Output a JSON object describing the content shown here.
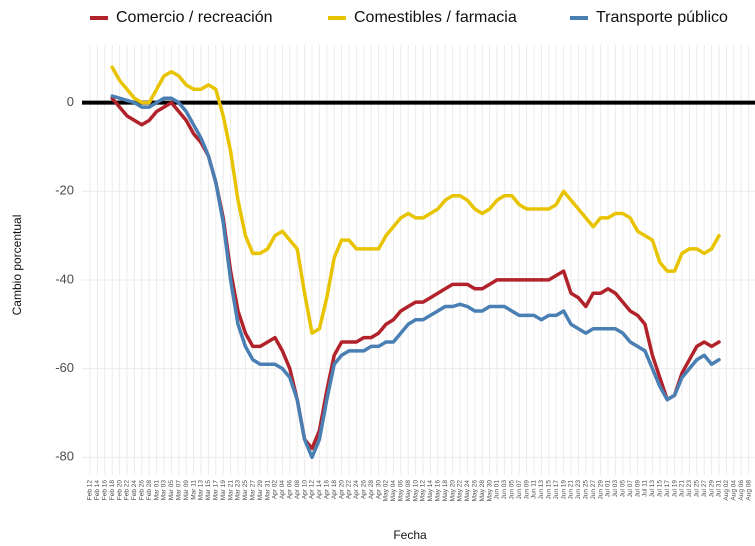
{
  "chart_data": {
    "type": "line",
    "x_label": "Fecha",
    "y_label": "Cambio porcentual",
    "x": [
      "Feb 12",
      "Feb 14",
      "Feb 16",
      "Feb 18",
      "Feb 20",
      "Feb 22",
      "Feb 24",
      "Feb 26",
      "Feb 28",
      "Mar 01",
      "Mar 03",
      "Mar 05",
      "Mar 07",
      "Mar 09",
      "Mar 11",
      "Mar 13",
      "Mar 15",
      "Mar 17",
      "Mar 19",
      "Mar 21",
      "Mar 23",
      "Mar 25",
      "Mar 27",
      "Mar 29",
      "Mar 31",
      "Apr 02",
      "Apr 04",
      "Apr 06",
      "Apr 08",
      "Apr 10",
      "Apr 12",
      "Apr 14",
      "Apr 16",
      "Apr 18",
      "Apr 20",
      "Apr 22",
      "Apr 24",
      "Apr 26",
      "Apr 28",
      "Apr 30",
      "May 02",
      "May 04",
      "May 06",
      "May 08",
      "May 10",
      "May 12",
      "May 14",
      "May 16",
      "May 18",
      "May 20",
      "May 22",
      "May 24",
      "May 26",
      "May 28",
      "May 30",
      "Jun 01",
      "Jun 03",
      "Jun 05",
      "Jun 07",
      "Jun 09",
      "Jun 11",
      "Jun 13",
      "Jun 15",
      "Jun 17",
      "Jun 19",
      "Jun 21",
      "Jun 23",
      "Jun 25",
      "Jun 27",
      "Jun 29",
      "Jul 01",
      "Jul 03",
      "Jul 05",
      "Jul 07",
      "Jul 09",
      "Jul 11",
      "Jul 13",
      "Jul 15",
      "Jul 17",
      "Jul 19",
      "Jul 21",
      "Jul 23",
      "Jul 25",
      "Jul 27",
      "Jul 29",
      "Jul 31",
      "Aug 02",
      "Aug 04",
      "Aug 06",
      "Aug 08"
    ],
    "series": [
      {
        "name": "Comercio / recreación",
        "color": "#b2222a",
        "values": [
          null,
          null,
          null,
          1,
          -1,
          -3,
          -4,
          -5,
          -4,
          -2,
          -1,
          0,
          -2,
          -4,
          -7,
          -9,
          -12,
          -18,
          -26,
          -38,
          -47,
          -52,
          -55,
          -55,
          -54,
          -53,
          -56,
          -60,
          -67,
          -76,
          -78,
          -74,
          -65,
          -57,
          -54,
          -54,
          -54,
          -53,
          -53,
          -52,
          -50,
          -49,
          -47,
          -46,
          -45,
          -45,
          -44,
          -43,
          -42,
          -41,
          -41,
          -41,
          -42,
          -42,
          -41,
          -40,
          -40,
          -40,
          -40,
          -40,
          -40,
          -40,
          -40,
          -39,
          -38,
          -43,
          -44,
          -46,
          -43,
          -43,
          -42,
          -43,
          -45,
          -47,
          -48,
          -50,
          -57,
          -62,
          -67,
          -66,
          -61,
          -58,
          -55,
          -54,
          -55,
          -54,
          null,
          null,
          null,
          null
        ]
      },
      {
        "name": "Comestibles / farmacia",
        "color": "#e8c400",
        "values": [
          null,
          null,
          null,
          8,
          5,
          3,
          1,
          0,
          0,
          3,
          6,
          7,
          6,
          4,
          3,
          3,
          4,
          3,
          -3,
          -11,
          -22,
          -30,
          -34,
          -34,
          -33,
          -30,
          -29,
          -31,
          -33,
          -43,
          -52,
          -51,
          -44,
          -35,
          -31,
          -31,
          -33,
          -33,
          -33,
          -33,
          -30,
          -28,
          -26,
          -25,
          -26,
          -26,
          -25,
          -24,
          -22,
          -21,
          -21,
          -22,
          -24,
          -25,
          -24,
          -22,
          -21,
          -21,
          -23,
          -24,
          -24,
          -24,
          -24,
          -23,
          -20,
          -22,
          -24,
          -26,
          -28,
          -26,
          -26,
          -25,
          -25,
          -26,
          -29,
          -30,
          -31,
          -36,
          -38,
          -38,
          -34,
          -33,
          -33,
          -34,
          -33,
          -30,
          null,
          null,
          null,
          null
        ]
      },
      {
        "name": "Transporte público",
        "color": "#4a7fb4",
        "values": [
          null,
          null,
          null,
          1.5,
          1,
          0.5,
          0,
          -1,
          -1,
          0,
          1,
          1,
          0,
          -2,
          -5,
          -8,
          -12,
          -18,
          -27,
          -40,
          -50,
          -55,
          -58,
          -59,
          -59,
          -59,
          -60,
          -62,
          -67,
          -76,
          -80,
          -76,
          -67,
          -59,
          -57,
          -56,
          -56,
          -56,
          -55,
          -55,
          -54,
          -54,
          -52,
          -50,
          -49,
          -49,
          -48,
          -47,
          -46,
          -46,
          -45.5,
          -46,
          -47,
          -47,
          -46,
          -46,
          -46,
          -47,
          -48,
          -48,
          -48,
          -49,
          -48,
          -48,
          -47,
          -50,
          -51,
          -52,
          -51,
          -51,
          -51,
          -51,
          -52,
          -54,
          -55,
          -56,
          -60,
          -64,
          -67,
          -66,
          -62,
          -60,
          -58,
          -57,
          -59,
          -58,
          null,
          null,
          null,
          null
        ]
      }
    ],
    "reference_line": 0,
    "ylim": [
      -84,
      13
    ],
    "yticks": [
      -80,
      -60,
      -40,
      -20,
      0
    ],
    "grid": true,
    "legend": "top"
  }
}
